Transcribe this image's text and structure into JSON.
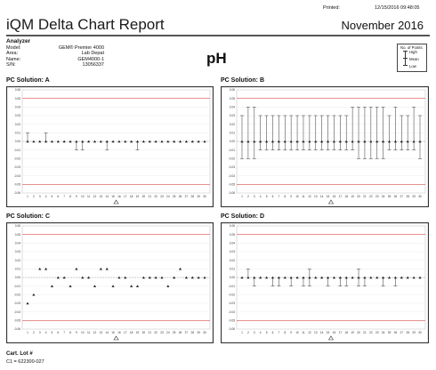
{
  "header": {
    "printed_label": "Printed:",
    "printed_value": "12/15/2016 09:48:05",
    "report_title": "iQM Delta Chart Report",
    "month": "November 2016"
  },
  "analyzer": {
    "heading": "Analyzer",
    "fields": [
      {
        "key": "Model:",
        "value": "GEM® Premier 4000"
      },
      {
        "key": "Area:",
        "value": "Lab Depat"
      },
      {
        "key": "Name:",
        "value": "GEM4000-1"
      },
      {
        "key": "S/N:",
        "value": "13056337"
      }
    ]
  },
  "analyte": "pH",
  "legend": {
    "title": "No. of Points",
    "high": "High",
    "mean": "Mean",
    "low": "Low"
  },
  "colors": {
    "frame": "#333333",
    "limit_line": "#d9534f",
    "zero_line": "#999999",
    "series": "#555555"
  },
  "chart_data": [
    {
      "type": "line",
      "title": "PC Solution: A",
      "ylim": [
        -0.06,
        0.06
      ],
      "y_ticks": [
        "0.06",
        "0.05",
        "0.04",
        "0.03",
        "0.02",
        "0.01",
        "0.00",
        "-0.01",
        "-0.02",
        "-0.03",
        "-0.04",
        "-0.05",
        "-0.06"
      ],
      "x": [
        1,
        2,
        3,
        4,
        5,
        6,
        7,
        8,
        9,
        10,
        11,
        12,
        13,
        14,
        15,
        16,
        17,
        18,
        19,
        20,
        21,
        22,
        23,
        24,
        25,
        26,
        27,
        28,
        29,
        30
      ],
      "mean": [
        0,
        0,
        0,
        0,
        0,
        0,
        0,
        0,
        0,
        0,
        0,
        0,
        0,
        0,
        0,
        0,
        0,
        0,
        0,
        0,
        0,
        0,
        0,
        0,
        0,
        0,
        0,
        0,
        0,
        0
      ],
      "high": [
        0.01,
        0,
        0,
        0.01,
        0,
        0,
        0,
        0,
        0,
        0,
        0,
        0,
        0,
        0,
        0,
        0,
        0,
        0,
        0,
        0,
        0,
        0,
        0,
        0,
        0,
        0,
        0,
        0,
        0,
        0
      ],
      "low": [
        0,
        0,
        0,
        0,
        0,
        0,
        0,
        0,
        -0.01,
        -0.01,
        0,
        0,
        0,
        -0.01,
        0,
        0,
        0,
        0,
        -0.01,
        0,
        0,
        0,
        0,
        0,
        0,
        0,
        0,
        0,
        0,
        0
      ],
      "limits": [
        0.05,
        -0.05
      ]
    },
    {
      "type": "line",
      "title": "PC Solution: B",
      "ylim": [
        -0.06,
        0.06
      ],
      "y_ticks": [
        "0.06",
        "0.05",
        "0.04",
        "0.03",
        "0.02",
        "0.01",
        "0.00",
        "-0.01",
        "-0.02",
        "-0.03",
        "-0.04",
        "-0.05",
        "-0.06"
      ],
      "x": [
        1,
        2,
        3,
        4,
        5,
        6,
        7,
        8,
        9,
        10,
        11,
        12,
        13,
        14,
        15,
        16,
        17,
        18,
        19,
        20,
        21,
        22,
        23,
        24,
        25,
        26,
        27,
        28,
        29,
        30
      ],
      "mean": [
        0,
        0,
        0,
        0,
        0,
        0,
        0,
        0,
        0,
        0,
        0,
        0,
        0,
        0,
        0,
        0,
        0,
        0,
        0,
        0,
        0,
        0,
        0,
        0,
        0,
        0,
        0,
        0,
        0,
        0
      ],
      "high": [
        0.03,
        0.04,
        0.04,
        0.03,
        0.03,
        0.03,
        0.03,
        0.03,
        0.03,
        0.03,
        0.03,
        0.03,
        0.03,
        0.03,
        0.03,
        0.03,
        0.03,
        0.03,
        0.04,
        0.04,
        0.04,
        0.04,
        0.04,
        0.04,
        0.03,
        0.04,
        0.03,
        0.03,
        0.04,
        0.03
      ],
      "low": [
        -0.02,
        -0.02,
        -0.02,
        -0.01,
        -0.01,
        -0.01,
        -0.01,
        -0.01,
        -0.01,
        -0.01,
        -0.01,
        -0.01,
        -0.01,
        -0.01,
        -0.01,
        -0.01,
        -0.01,
        -0.01,
        -0.01,
        -0.02,
        -0.02,
        -0.02,
        -0.02,
        -0.02,
        -0.01,
        -0.01,
        -0.01,
        -0.01,
        -0.01,
        -0.02
      ],
      "limits": [
        0.05,
        -0.05
      ]
    },
    {
      "type": "scatter",
      "title": "PC Solution: C",
      "ylim": [
        -0.06,
        0.06
      ],
      "y_ticks": [
        "0.06",
        "0.05",
        "0.04",
        "0.03",
        "0.02",
        "0.01",
        "0.00",
        "-0.01",
        "-0.02",
        "-0.03",
        "-0.04",
        "-0.05",
        "-0.06"
      ],
      "x": [
        1,
        2,
        3,
        4,
        5,
        6,
        7,
        8,
        9,
        10,
        11,
        12,
        13,
        14,
        15,
        16,
        17,
        18,
        19,
        20,
        21,
        22,
        23,
        24,
        25,
        26,
        27,
        28,
        29,
        30
      ],
      "mean": [
        -0.03,
        -0.02,
        0.01,
        0.01,
        -0.01,
        0,
        0,
        -0.01,
        0.01,
        0,
        0,
        -0.01,
        0.01,
        0.01,
        -0.01,
        0,
        0,
        -0.01,
        -0.01,
        0,
        0,
        0,
        0,
        -0.01,
        0,
        0.01,
        0,
        0,
        0,
        0
      ],
      "high": [
        -0.03,
        -0.02,
        0.01,
        0.01,
        -0.01,
        0,
        0,
        -0.01,
        0.01,
        0,
        0,
        -0.01,
        0.01,
        0.01,
        -0.01,
        0,
        0,
        -0.01,
        -0.01,
        0,
        0,
        0,
        0,
        -0.01,
        0,
        0.01,
        0,
        0,
        0,
        0
      ],
      "low": [
        -0.03,
        -0.02,
        0.01,
        0.01,
        -0.01,
        0,
        0,
        -0.01,
        0.01,
        0,
        0,
        -0.01,
        0.01,
        0.01,
        -0.01,
        0,
        0,
        -0.01,
        -0.01,
        0,
        0,
        0,
        0,
        -0.01,
        0,
        0.01,
        0,
        0,
        0,
        0
      ],
      "limits": [
        0.05,
        -0.05
      ]
    },
    {
      "type": "line",
      "title": "PC Solution: D",
      "ylim": [
        -0.06,
        0.06
      ],
      "y_ticks": [
        "0.06",
        "0.05",
        "0.04",
        "0.03",
        "0.02",
        "0.01",
        "0.00",
        "-0.01",
        "-0.02",
        "-0.03",
        "-0.04",
        "-0.05",
        "-0.06"
      ],
      "x": [
        1,
        2,
        3,
        4,
        5,
        6,
        7,
        8,
        9,
        10,
        11,
        12,
        13,
        14,
        15,
        16,
        17,
        18,
        19,
        20,
        21,
        22,
        23,
        24,
        25,
        26,
        27,
        28,
        29,
        30
      ],
      "mean": [
        0,
        0,
        0,
        0,
        0,
        0,
        0,
        0,
        0,
        0,
        0,
        0,
        0,
        0,
        0,
        0,
        0,
        0,
        0,
        0,
        0,
        0,
        0,
        0,
        0,
        0,
        0,
        0,
        0,
        0
      ],
      "high": [
        0,
        0.01,
        0,
        0,
        0,
        0,
        0,
        0,
        0,
        0,
        0,
        0.01,
        0,
        0,
        0,
        0,
        0,
        0,
        0,
        0.01,
        0,
        0,
        0,
        0,
        0,
        0,
        0,
        0,
        0,
        0
      ],
      "low": [
        0,
        0,
        -0.01,
        0,
        0,
        -0.01,
        -0.01,
        0,
        -0.01,
        0,
        -0.01,
        -0.01,
        0,
        0,
        -0.01,
        0,
        -0.01,
        -0.01,
        0,
        -0.01,
        -0.01,
        0,
        0,
        -0.01,
        0,
        -0.01,
        0,
        0,
        0,
        0
      ],
      "limits": [
        0.05,
        -0.05
      ]
    }
  ],
  "cartridge": {
    "heading": "Cart. Lot #",
    "line": "C1 = 622300-027"
  }
}
